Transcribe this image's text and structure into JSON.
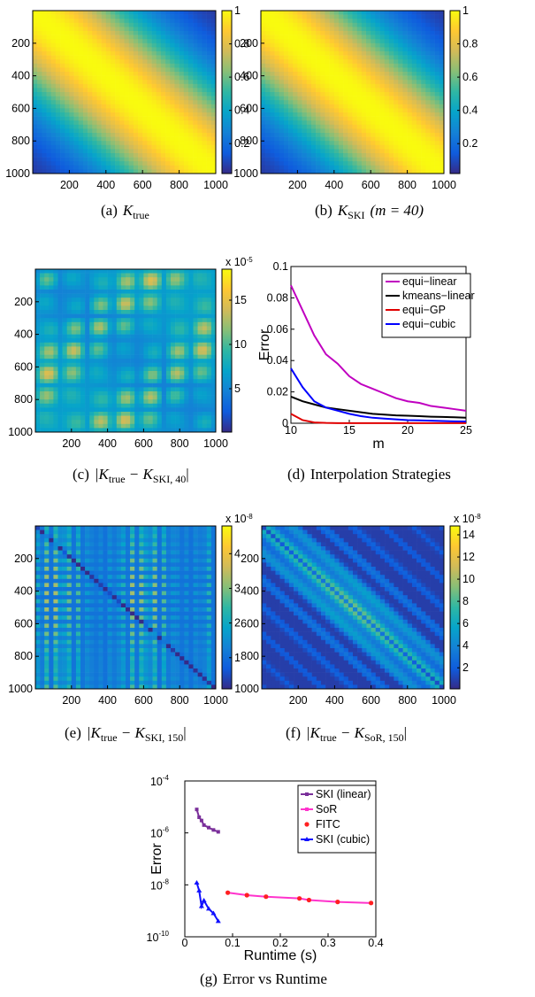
{
  "colors": {
    "parula": [
      "#352a87",
      "#0f5cdd",
      "#1481d6",
      "#06a4ca",
      "#2eb7a4",
      "#87bf77",
      "#d1bb59",
      "#fec832",
      "#f9fb0e"
    ],
    "equi_linear": "#c000c0",
    "kmeans_linear": "#000000",
    "equi_GP": "#e00000",
    "equi_cubic": "#0000ff",
    "ski_linear": "#7a2f9a",
    "sor": "#ff33cc",
    "fitc": "#ff2020",
    "ski_cubic": "#1010ff"
  },
  "captions": {
    "a": {
      "label": "(a)",
      "math": "K",
      "sub": "true",
      "rest": ""
    },
    "b": {
      "label": "(b)",
      "math": "K",
      "sub": "SKI",
      "rest": "(m = 40)"
    },
    "c": {
      "label": "(c)",
      "text": "|K",
      "sub1": "true",
      "mid": " − K",
      "sub2": "SKI, 40",
      "end": "|"
    },
    "d": {
      "label": "(d)",
      "text": "Interpolation Strategies"
    },
    "e": {
      "label": "(e)",
      "text": "|K",
      "sub1": "true",
      "mid": " − K",
      "sub2": "SKI, 150",
      "end": "|"
    },
    "f": {
      "label": "(f)",
      "text": "|K",
      "sub1": "true",
      "mid": " − K",
      "sub2": "SoR, 150",
      "end": "|"
    },
    "g": {
      "label": "(g)",
      "text": "Error vs Runtime"
    }
  },
  "chart_data": [
    {
      "id": "a",
      "type": "heatmap",
      "xticks": [
        "200",
        "400",
        "600",
        "800",
        "1000"
      ],
      "yticks": [
        "200",
        "400",
        "600",
        "800",
        "1000"
      ],
      "colorbar": {
        "ticks": [
          "0.2",
          "0.4",
          "0.6",
          "0.8",
          "1"
        ],
        "multiplier": ""
      },
      "range": [
        0,
        1000
      ]
    },
    {
      "id": "b",
      "type": "heatmap",
      "xticks": [
        "200",
        "400",
        "600",
        "800",
        "1000"
      ],
      "yticks": [
        "200",
        "400",
        "600",
        "800",
        "1000"
      ],
      "colorbar": {
        "ticks": [
          "0.2",
          "0.4",
          "0.6",
          "0.8",
          "1"
        ],
        "multiplier": ""
      },
      "range": [
        0,
        1000
      ]
    },
    {
      "id": "c",
      "type": "heatmap",
      "xticks": [
        "200",
        "400",
        "600",
        "800",
        "1000"
      ],
      "yticks": [
        "200",
        "400",
        "600",
        "800",
        "1000"
      ],
      "colorbar": {
        "ticks": [
          "5",
          "10",
          "15"
        ],
        "multiplier": "x 10",
        "exp": "-5"
      },
      "range": [
        0,
        1000
      ]
    },
    {
      "id": "d",
      "type": "line",
      "xlabel": "m",
      "ylabel": "Error",
      "xlim": [
        10,
        25
      ],
      "ylim": [
        0,
        0.1
      ],
      "xticks": [
        "10",
        "15",
        "20",
        "25"
      ],
      "yticks": [
        "0",
        "0.02",
        "0.04",
        "0.06",
        "0.08",
        "0.1"
      ],
      "legend_position": "top-right",
      "x": [
        10,
        11,
        12,
        13,
        14,
        15,
        16,
        17,
        18,
        19,
        20,
        21,
        22,
        23,
        24,
        25
      ],
      "series": [
        {
          "name": "equi−linear",
          "values": [
            0.088,
            0.072,
            0.056,
            0.044,
            0.038,
            0.03,
            0.025,
            0.022,
            0.019,
            0.016,
            0.014,
            0.013,
            0.011,
            0.01,
            0.009,
            0.008
          ]
        },
        {
          "name": "kmeans−linear",
          "values": [
            0.017,
            0.014,
            0.012,
            0.01,
            0.009,
            0.008,
            0.007,
            0.006,
            0.0055,
            0.005,
            0.0048,
            0.0045,
            0.0042,
            0.004,
            0.0038,
            0.0035
          ]
        },
        {
          "name": "equi−GP",
          "values": [
            0.006,
            0.002,
            0.0005,
            0.0002,
            0.0001,
            0.0001,
            0.0001,
            0.0001,
            0.0001,
            0.0001,
            0.0001,
            0.0001,
            0.0001,
            0.0001,
            0.0001,
            0.0001
          ]
        },
        {
          "name": "equi−cubic",
          "values": [
            0.035,
            0.023,
            0.014,
            0.01,
            0.008,
            0.006,
            0.0045,
            0.0035,
            0.003,
            0.0025,
            0.002,
            0.0018,
            0.0016,
            0.0014,
            0.0012,
            0.0011
          ]
        }
      ]
    },
    {
      "id": "e",
      "type": "heatmap",
      "xticks": [
        "200",
        "400",
        "600",
        "800",
        "1000"
      ],
      "yticks": [
        "200",
        "400",
        "600",
        "800",
        "1000"
      ],
      "colorbar": {
        "ticks": [
          "1",
          "2",
          "3",
          "4"
        ],
        "multiplier": "x 10",
        "exp": "-8"
      },
      "range": [
        0,
        1000
      ]
    },
    {
      "id": "f",
      "type": "heatmap",
      "xticks": [
        "200",
        "400",
        "600",
        "800",
        "1000"
      ],
      "yticks": [
        "200",
        "400",
        "600",
        "800",
        "1000"
      ],
      "colorbar": {
        "ticks": [
          "2",
          "4",
          "6",
          "8",
          "10",
          "12",
          "14"
        ],
        "multiplier": "x 10",
        "exp": "-8"
      },
      "range": [
        0,
        1000
      ]
    },
    {
      "id": "g",
      "type": "line",
      "xlabel": "Runtime (s)",
      "ylabel": "Error",
      "xlim": [
        0,
        0.4
      ],
      "ylog": true,
      "ylim_exp": [
        -10,
        -4
      ],
      "xticks": [
        "0",
        "0.1",
        "0.2",
        "0.3",
        "0.4"
      ],
      "yticks_exp": [
        "-10",
        "-8",
        "-6",
        "-4"
      ],
      "legend_position": "top-right",
      "series": [
        {
          "name": "SKI (linear)",
          "x": [
            0.025,
            0.03,
            0.035,
            0.04,
            0.05,
            0.06,
            0.07
          ],
          "y": [
            8e-06,
            4e-06,
            3e-06,
            2e-06,
            1.6e-06,
            1.3e-06,
            1.1e-06
          ]
        },
        {
          "name": "SoR",
          "x": [
            0.09,
            0.13,
            0.17,
            0.24,
            0.26,
            0.32,
            0.39
          ],
          "y": [
            5e-09,
            4e-09,
            3.5e-09,
            3e-09,
            2.6e-09,
            2.2e-09,
            2e-09
          ]
        },
        {
          "name": "FITC",
          "x": [
            0.09,
            0.13,
            0.17,
            0.24,
            0.26,
            0.32,
            0.39
          ],
          "y": [
            5e-09,
            4e-09,
            3.5e-09,
            3e-09,
            2.6e-09,
            2.2e-09,
            2e-09
          ]
        },
        {
          "name": "SKI (cubic)",
          "x": [
            0.025,
            0.03,
            0.035,
            0.04,
            0.05,
            0.06,
            0.07
          ],
          "y": [
            1.2e-08,
            6e-09,
            1.5e-09,
            2.5e-09,
            1.2e-09,
            8e-10,
            4e-10
          ]
        }
      ]
    }
  ]
}
